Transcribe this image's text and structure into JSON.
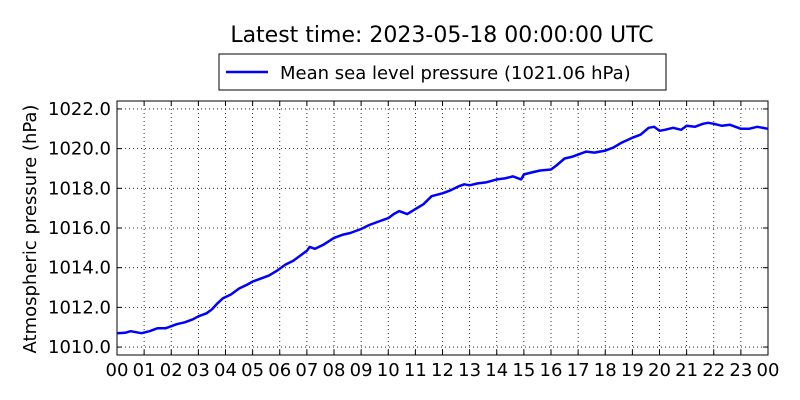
{
  "chart_data": {
    "type": "line",
    "title": "Latest time: 2023-05-18 00:00:00 UTC",
    "xlabel": "",
    "ylabel": "Atmospheric pressure (hPa)",
    "xlim": [
      0,
      24
    ],
    "ylim": [
      1009.6,
      1022.4
    ],
    "grid": true,
    "grid_style": "dotted",
    "legend_position": "top-center",
    "x_tick_values": [
      0,
      1,
      2,
      3,
      4,
      5,
      6,
      7,
      8,
      9,
      10,
      11,
      12,
      13,
      14,
      15,
      16,
      17,
      18,
      19,
      20,
      21,
      22,
      23,
      24
    ],
    "x_tick_labels": [
      "00",
      "01",
      "02",
      "03",
      "04",
      "05",
      "06",
      "07",
      "08",
      "09",
      "10",
      "11",
      "12",
      "13",
      "14",
      "15",
      "16",
      "17",
      "18",
      "19",
      "20",
      "21",
      "22",
      "23",
      "00"
    ],
    "y_tick_values": [
      1010,
      1012,
      1014,
      1016,
      1018,
      1020,
      1022
    ],
    "y_tick_labels": [
      "1010.0",
      "1012.0",
      "1014.0",
      "1016.0",
      "1018.0",
      "1020.0",
      "1022.0"
    ],
    "series": [
      {
        "name": "Mean sea level pressure (1021.06 hPa)",
        "color": "#0000ff",
        "x": [
          0,
          0.3,
          0.5,
          0.7,
          0.9,
          1.2,
          1.5,
          1.8,
          2.0,
          2.2,
          2.5,
          2.8,
          3.0,
          3.3,
          3.5,
          3.7,
          3.9,
          4.2,
          4.5,
          4.8,
          5.0,
          5.3,
          5.6,
          5.9,
          6.2,
          6.5,
          6.8,
          7.0,
          7.1,
          7.3,
          7.6,
          8.0,
          8.3,
          8.6,
          9.0,
          9.3,
          9.6,
          10.0,
          10.2,
          10.4,
          10.7,
          11.0,
          11.3,
          11.6,
          12.0,
          12.3,
          12.6,
          12.8,
          13.0,
          13.3,
          13.6,
          14.0,
          14.3,
          14.6,
          14.9,
          15.0,
          15.3,
          15.6,
          16.0,
          16.2,
          16.5,
          16.8,
          17.0,
          17.3,
          17.6,
          18.0,
          18.3,
          18.6,
          19.0,
          19.3,
          19.6,
          19.8,
          20.0,
          20.2,
          20.5,
          20.8,
          21.0,
          21.3,
          21.6,
          21.8,
          22.0,
          22.3,
          22.6,
          22.8,
          23.0,
          23.3,
          23.6,
          24.0
        ],
        "y": [
          1010.7,
          1010.72,
          1010.8,
          1010.75,
          1010.7,
          1010.8,
          1010.95,
          1010.95,
          1011.05,
          1011.15,
          1011.25,
          1011.4,
          1011.55,
          1011.7,
          1011.9,
          1012.2,
          1012.45,
          1012.65,
          1012.95,
          1013.15,
          1013.3,
          1013.45,
          1013.6,
          1013.85,
          1014.15,
          1014.35,
          1014.65,
          1014.85,
          1015.05,
          1014.95,
          1015.15,
          1015.5,
          1015.65,
          1015.75,
          1015.95,
          1016.15,
          1016.3,
          1016.5,
          1016.7,
          1016.85,
          1016.7,
          1016.95,
          1017.2,
          1017.6,
          1017.75,
          1017.9,
          1018.1,
          1018.2,
          1018.15,
          1018.25,
          1018.3,
          1018.45,
          1018.5,
          1018.6,
          1018.45,
          1018.7,
          1018.8,
          1018.9,
          1018.95,
          1019.15,
          1019.5,
          1019.6,
          1019.7,
          1019.85,
          1019.8,
          1019.9,
          1020.05,
          1020.3,
          1020.55,
          1020.7,
          1021.05,
          1021.1,
          1020.9,
          1020.95,
          1021.05,
          1020.95,
          1021.15,
          1021.1,
          1021.25,
          1021.3,
          1021.25,
          1021.15,
          1021.2,
          1021.1,
          1021.0,
          1021.0,
          1021.1,
          1021.0
        ]
      }
    ]
  }
}
